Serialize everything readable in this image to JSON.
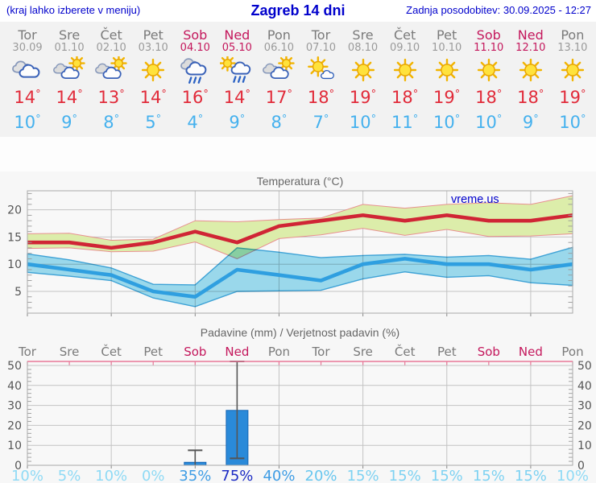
{
  "header": {
    "left_hint": "(kraj lahko izberete v meniju)",
    "title": "Zagreb 14 dni",
    "last_update": "Zadnja posodobitev: 30.09.2025 - 12:27"
  },
  "branding": "vreme.us",
  "days": [
    {
      "name": "Tor",
      "date": "30.09",
      "weekend": false,
      "icon": "cloudy",
      "tmax": 14,
      "tmin": 10,
      "precip_prob": 10,
      "precip_mm": 0,
      "whisker": null
    },
    {
      "name": "Sre",
      "date": "01.10",
      "weekend": false,
      "icon": "partly-cloudy",
      "tmax": 14,
      "tmin": 9,
      "precip_prob": 5,
      "precip_mm": 0,
      "whisker": null
    },
    {
      "name": "Čet",
      "date": "02.10",
      "weekend": false,
      "icon": "partly-cloudy",
      "tmax": 13,
      "tmin": 8,
      "precip_prob": 10,
      "precip_mm": 0,
      "whisker": null
    },
    {
      "name": "Pet",
      "date": "03.10",
      "weekend": false,
      "icon": "sunny",
      "tmax": 14,
      "tmin": 5,
      "precip_prob": 0,
      "precip_mm": 0,
      "whisker": null
    },
    {
      "name": "Sob",
      "date": "04.10",
      "weekend": true,
      "icon": "rain",
      "tmax": 16,
      "tmin": 4,
      "precip_prob": 35,
      "precip_mm": 1.5,
      "whisker": [
        0,
        7.5
      ]
    },
    {
      "name": "Ned",
      "date": "05.10",
      "weekend": true,
      "icon": "sun-rain",
      "tmax": 14,
      "tmin": 9,
      "precip_prob": 75,
      "precip_mm": 27.5,
      "whisker": [
        3.5,
        52
      ]
    },
    {
      "name": "Pon",
      "date": "06.10",
      "weekend": false,
      "icon": "partly-cloudy",
      "tmax": 17,
      "tmin": 8,
      "precip_prob": 40,
      "precip_mm": 0,
      "whisker": null
    },
    {
      "name": "Tor",
      "date": "07.10",
      "weekend": false,
      "icon": "mostly-sunny",
      "tmax": 18,
      "tmin": 7,
      "precip_prob": 20,
      "precip_mm": 0,
      "whisker": null
    },
    {
      "name": "Sre",
      "date": "08.10",
      "weekend": false,
      "icon": "sunny",
      "tmax": 19,
      "tmin": 10,
      "precip_prob": 15,
      "precip_mm": 0,
      "whisker": null
    },
    {
      "name": "Čet",
      "date": "09.10",
      "weekend": false,
      "icon": "sunny",
      "tmax": 18,
      "tmin": 11,
      "precip_prob": 15,
      "precip_mm": 0,
      "whisker": null
    },
    {
      "name": "Pet",
      "date": "10.10",
      "weekend": false,
      "icon": "sunny",
      "tmax": 19,
      "tmin": 10,
      "precip_prob": 15,
      "precip_mm": 0,
      "whisker": null
    },
    {
      "name": "Sob",
      "date": "11.10",
      "weekend": true,
      "icon": "sunny",
      "tmax": 18,
      "tmin": 10,
      "precip_prob": 15,
      "precip_mm": 0,
      "whisker": null
    },
    {
      "name": "Ned",
      "date": "12.10",
      "weekend": true,
      "icon": "sunny",
      "tmax": 18,
      "tmin": 9,
      "precip_prob": 15,
      "precip_mm": 0,
      "whisker": null
    },
    {
      "name": "Pon",
      "date": "13.10",
      "weekend": false,
      "icon": "sunny",
      "tmax": 19,
      "tmin": 10,
      "precip_prob": 10,
      "precip_mm": 0,
      "whisker": null
    }
  ],
  "chart_data": [
    {
      "type": "line",
      "title": "Temperatura (°C)",
      "categories": [
        "Tor",
        "Sre",
        "Čet",
        "Pet",
        "Sob",
        "Ned",
        "Pon",
        "Tor",
        "Sre",
        "Čet",
        "Pet",
        "Sob",
        "Ned",
        "Pon"
      ],
      "ylim": [
        1,
        23.5
      ],
      "yticks": [
        5,
        10,
        15,
        20
      ],
      "grid": true,
      "series": [
        {
          "name": "tmax",
          "values": [
            14,
            14,
            13,
            14,
            16,
            14,
            17,
            18,
            19,
            18,
            19,
            18,
            18,
            19
          ]
        },
        {
          "name": "tmax_upper",
          "values": [
            15.6,
            15.7,
            14.4,
            14.6,
            18.0,
            17.8,
            18.2,
            18.5,
            21.0,
            20.3,
            21.0,
            21.3,
            21.0,
            22.6
          ]
        },
        {
          "name": "tmax_lower",
          "values": [
            12.9,
            13.0,
            12.3,
            12.4,
            14.1,
            11.0,
            14.7,
            15.4,
            16.6,
            15.3,
            16.4,
            15.1,
            15.2,
            15.6
          ]
        },
        {
          "name": "tmin",
          "values": [
            10,
            9,
            8,
            5,
            4,
            9,
            8,
            7,
            10,
            11,
            10,
            10,
            9,
            10
          ]
        },
        {
          "name": "tmin_upper",
          "values": [
            11.9,
            10.8,
            9.3,
            6.3,
            6.2,
            13.0,
            12.2,
            11.2,
            11.6,
            11.8,
            11.3,
            11.6,
            10.9,
            13.1
          ]
        },
        {
          "name": "tmin_lower",
          "values": [
            8.5,
            7.8,
            7.0,
            3.8,
            2.2,
            5.0,
            5.1,
            5.2,
            7.3,
            8.6,
            7.6,
            7.9,
            6.6,
            6.1
          ]
        }
      ]
    },
    {
      "type": "bar",
      "title": "Padavine (mm) / Verjetnost padavin (%)",
      "categories": [
        "Tor",
        "Sre",
        "Čet",
        "Pet",
        "Sob",
        "Ned",
        "Pon",
        "Tor",
        "Sre",
        "Čet",
        "Pet",
        "Sob",
        "Ned",
        "Pon"
      ],
      "ylim": [
        0,
        52
      ],
      "yticks": [
        0,
        10,
        20,
        30,
        40,
        50
      ],
      "grid": true,
      "values": [
        0,
        0,
        0,
        0,
        1.5,
        27.5,
        0,
        0,
        0,
        0,
        0,
        0,
        0,
        0
      ],
      "probabilities": [
        10,
        5,
        10,
        0,
        35,
        75,
        40,
        20,
        15,
        15,
        15,
        15,
        15,
        10
      ]
    }
  ],
  "colors": {
    "accent_blue": "#0000cc",
    "temp_max_text": "#e12a39",
    "temp_min_text": "#45b1ee",
    "weekend_text": "#c4175c",
    "weekday_text": "#7a7a7a",
    "band_max_fill": "#dcedaa",
    "band_max_edge": "#e89090",
    "band_min_fill": "#9edef2",
    "band_min_edge": "#3fa7dc",
    "line_max": "#d02535",
    "line_min": "#2f9fe0",
    "bar_fill": "#2a8ad9",
    "bar_edge": "#1565b5",
    "whisker": "#555555",
    "grid": "#c3c3c3",
    "plot_border": "#aaaaaa",
    "plot_top_pink": "#e87898",
    "axis_text": "#555555",
    "title_text": "#666666",
    "prob_tier_0": "#8fdaf5",
    "prob_tier_15": "#7ed2f2",
    "prob_tier_20": "#66c6ef",
    "prob_tier_35": "#3f9de5",
    "prob_tier_70": "#1c2bc4"
  }
}
